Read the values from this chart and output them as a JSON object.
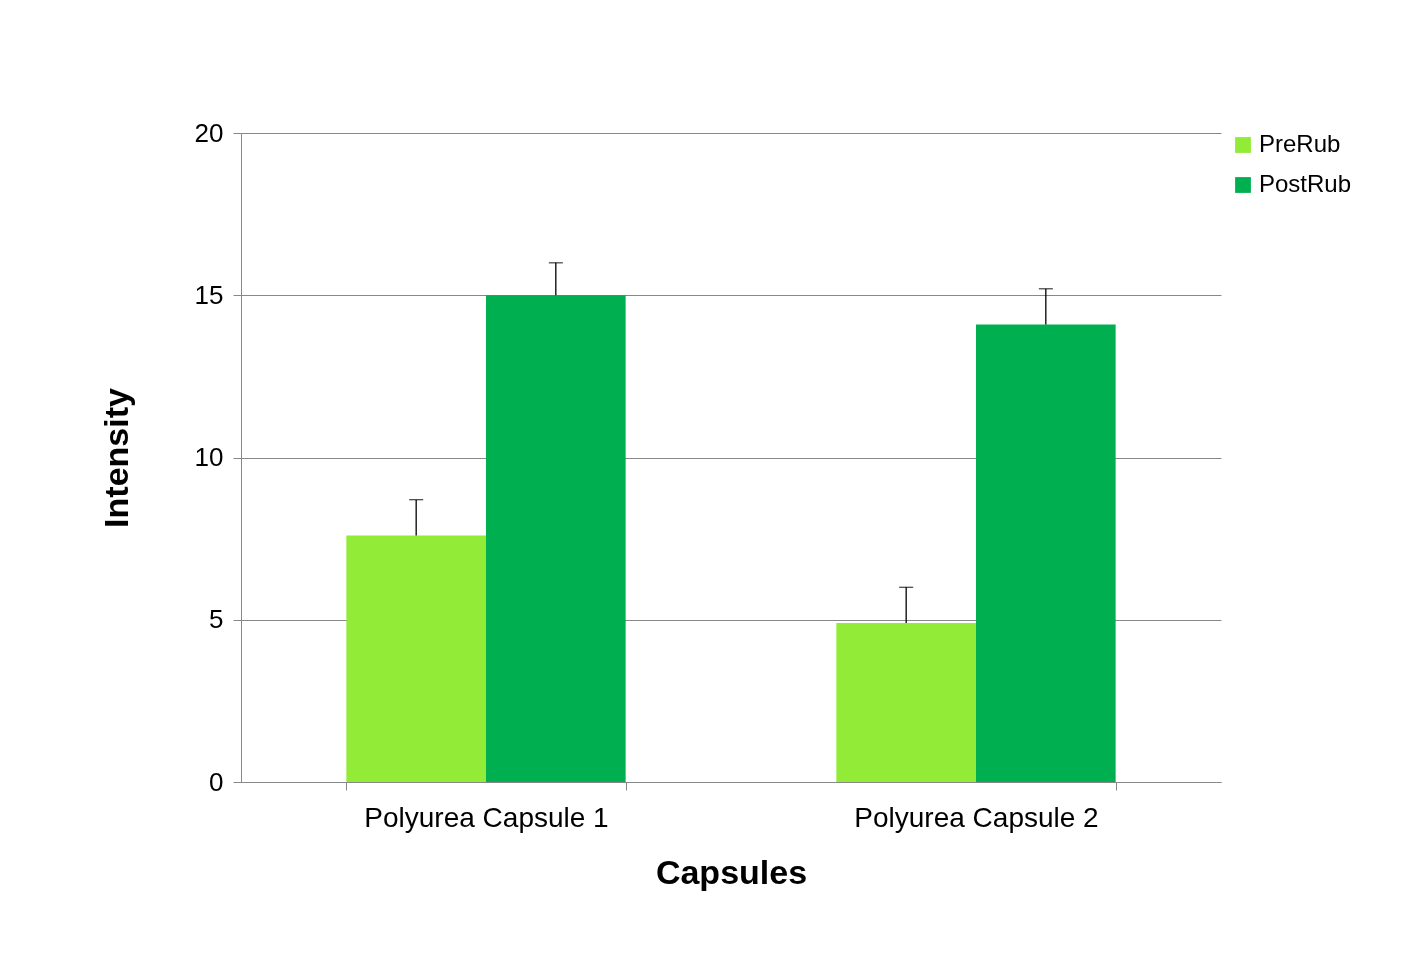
{
  "chart_data": {
    "type": "bar",
    "xlabel": "Capsules",
    "ylabel": "Intensity",
    "categories": [
      "Polyurea Capsule 1",
      "Polyurea Capsule 2"
    ],
    "series": [
      {
        "name": "PreRub",
        "color": "#92eb37",
        "values": [
          7.6,
          4.9
        ],
        "errors": [
          1.1,
          1.1
        ]
      },
      {
        "name": "PostRub",
        "color": "#00b050",
        "values": [
          15.0,
          14.1
        ],
        "errors": [
          1.0,
          1.1
        ]
      }
    ],
    "ylim": [
      0,
      20
    ],
    "yticks": [
      0,
      5,
      10,
      15,
      20
    ],
    "grid": "y",
    "legend": "right"
  }
}
